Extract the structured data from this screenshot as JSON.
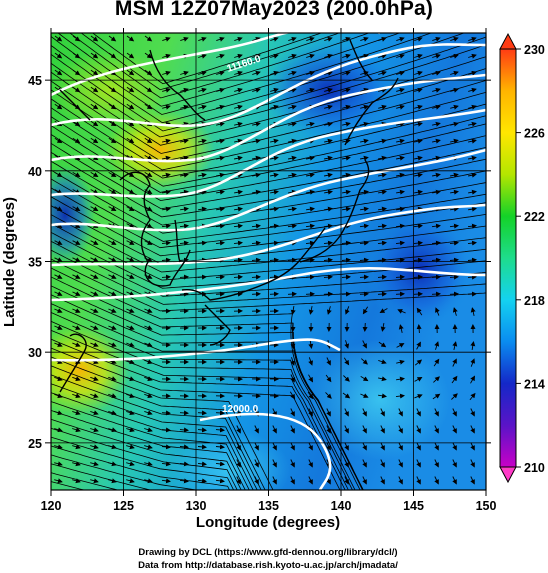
{
  "title": "MSM 12Z07May2023 (200.0hPa)",
  "map": {
    "x_label": "Longitude (degrees)",
    "y_label": "Latitude  (degrees)",
    "lon_range": [
      120,
      150
    ],
    "lat_range": [
      22.4,
      47.6
    ],
    "lon_ticks": [
      "120",
      "125",
      "130",
      "135",
      "140",
      "145",
      "150"
    ],
    "lat_ticks": [
      "25",
      "30",
      "35",
      "40",
      "45"
    ],
    "grid": true,
    "field": "temperature (K) with wind streamlines",
    "contour_labels": [
      "11160.0",
      "12000.0"
    ]
  },
  "colorbar": {
    "min": 210,
    "max": 230,
    "ticks": [
      "210",
      "214",
      "218",
      "222",
      "226",
      "230"
    ],
    "colors": [
      "#c800c8",
      "#1428c8",
      "#0a8cf0",
      "#14d2f0",
      "#1edc64",
      "#14d228",
      "#d2e600",
      "#ffb400",
      "#ff3c14"
    ]
  },
  "credits": {
    "line1": "Drawing by DCL (https://www.gfd-dennou.org/library/dcl/)",
    "line2": "Data from http://database.rish.kyoto-u.ac.jp/arch/jmadata/"
  }
}
